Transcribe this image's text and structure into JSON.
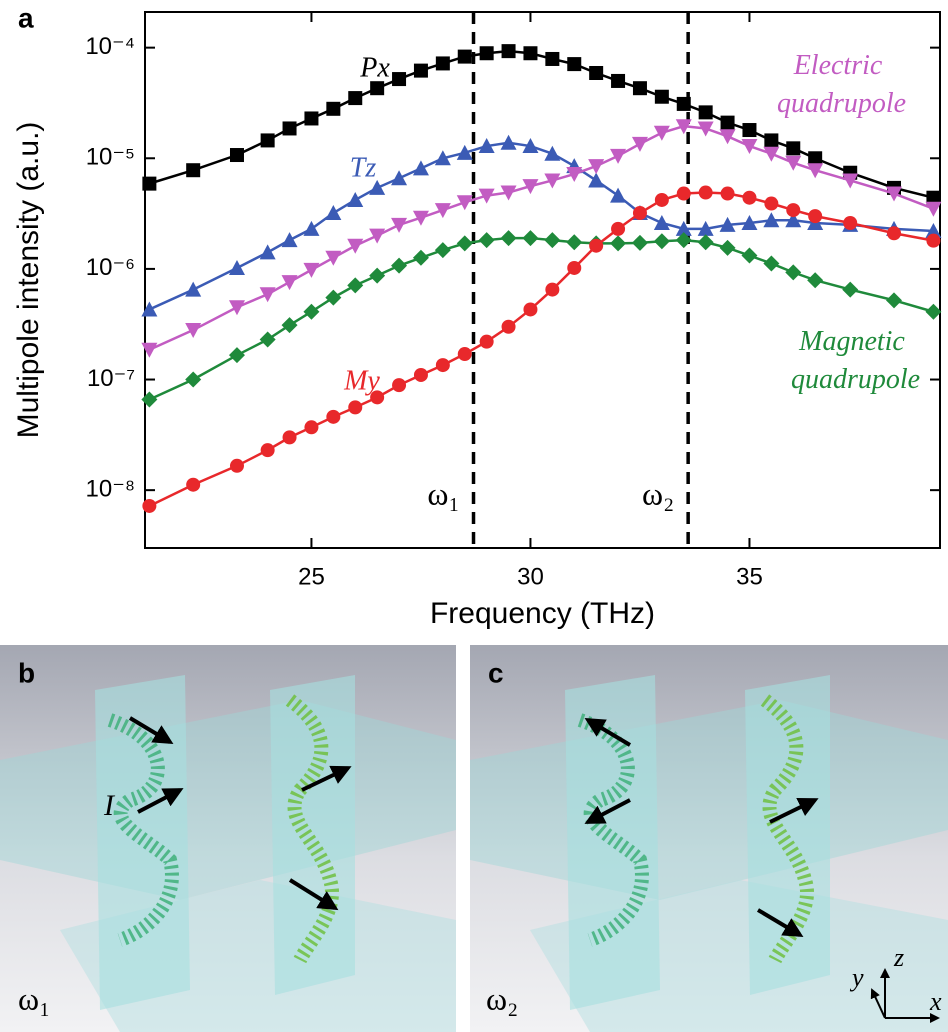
{
  "panel_label": "a",
  "chart_data": {
    "type": "line",
    "x_label": "Frequency (THz)",
    "y_label": "Multipole intensity (a.u.)",
    "x": [
      21.3,
      22.3,
      23.3,
      24.0,
      24.5,
      25.0,
      25.5,
      26.0,
      26.5,
      27.0,
      27.5,
      28.0,
      28.5,
      29.0,
      29.5,
      30.0,
      30.5,
      31.0,
      31.5,
      32.0,
      32.5,
      33.0,
      33.5,
      34.0,
      34.5,
      35.0,
      35.5,
      36.0,
      36.5,
      37.3,
      38.3,
      39.2
    ],
    "xlim": [
      21.2,
      39.35
    ],
    "xticks": [
      25,
      30,
      35
    ],
    "ylim": [
      3e-09,
      0.00021
    ],
    "log_y": true,
    "yticks": [
      {
        "value": 1e-08,
        "label": "10⁻⁸"
      },
      {
        "value": 1e-07,
        "label": "10⁻⁷"
      },
      {
        "value": 1e-06,
        "label": "10⁻⁶"
      },
      {
        "value": 1e-05,
        "label": "10⁻⁵"
      },
      {
        "value": 0.0001,
        "label": "10⁻⁴"
      }
    ],
    "series": [
      {
        "name": "Px",
        "color": "#000000",
        "marker": "square",
        "values": [
          5.9e-06,
          7.8e-06,
          1.07e-05,
          1.45e-05,
          1.86e-05,
          2.29e-05,
          2.8e-05,
          3.5e-05,
          4.3e-05,
          5.2e-05,
          6.2e-05,
          7.2e-05,
          8.3e-05,
          8.9e-05,
          9.3e-05,
          8.9e-05,
          7.9e-05,
          7.1e-05,
          5.9e-05,
          5e-05,
          4.3e-05,
          3.6e-05,
          3.1e-05,
          2.6e-05,
          2.1e-05,
          1.8e-05,
          1.45e-05,
          1.23e-05,
          1e-05,
          7.4e-06,
          5.4e-06,
          4.4e-06
        ]
      },
      {
        "name": "Tz",
        "color": "#3b5bb5",
        "marker": "triangle-up",
        "values": [
          4.3e-07,
          6.5e-07,
          1.02e-06,
          1.41e-06,
          1.82e-06,
          2.3e-06,
          3.2e-06,
          4.2e-06,
          5.4e-06,
          6.6e-06,
          8.1e-06,
          1e-05,
          1.12e-05,
          1.29e-05,
          1.38e-05,
          1.29e-05,
          1.1e-05,
          8.5e-06,
          6.3e-06,
          4.6e-06,
          3.2e-06,
          2.6e-06,
          2.3e-06,
          2.3e-06,
          2.5e-06,
          2.6e-06,
          2.75e-06,
          2.75e-06,
          2.6e-06,
          2.5e-06,
          2.3e-06,
          2.2e-06
        ]
      },
      {
        "name": "Electric quadrupole",
        "color": "#c25cc2",
        "marker": "triangle-down",
        "values": [
          1.86e-07,
          2.8e-07,
          4.5e-07,
          5.9e-07,
          7.6e-07,
          9.8e-07,
          1.26e-06,
          1.62e-06,
          2e-06,
          2.5e-06,
          2.9e-06,
          3.4e-06,
          4e-06,
          4.6e-06,
          4.9e-06,
          5.6e-06,
          6.3e-06,
          7.2e-06,
          8.5e-06,
          1.05e-05,
          1.35e-05,
          1.7e-05,
          1.95e-05,
          1.86e-05,
          1.58e-05,
          1.29e-05,
          1.1e-05,
          9.1e-06,
          7.8e-06,
          6.3e-06,
          4.8e-06,
          3.5e-06
        ]
      },
      {
        "name": "Magnetic quadrupole",
        "color": "#1f8a3b",
        "marker": "diamond",
        "values": [
          6.6e-08,
          1e-07,
          1.66e-07,
          2.3e-07,
          3.1e-07,
          4.1e-07,
          5.5e-07,
          7.1e-07,
          8.7e-07,
          1.07e-06,
          1.26e-06,
          1.48e-06,
          1.7e-06,
          1.82e-06,
          1.9e-06,
          1.9e-06,
          1.82e-06,
          1.74e-06,
          1.7e-06,
          1.7e-06,
          1.72e-06,
          1.78e-06,
          1.82e-06,
          1.74e-06,
          1.55e-06,
          1.32e-06,
          1.12e-06,
          9.3e-07,
          7.9e-07,
          6.5e-07,
          5.2e-07,
          4.1e-07
        ]
      },
      {
        "name": "My",
        "color": "#e8282b",
        "marker": "circle",
        "values": [
          7.2e-09,
          1.12e-08,
          1.66e-08,
          2.3e-08,
          3e-08,
          3.7e-08,
          4.6e-08,
          5.6e-08,
          6.9e-08,
          8.9e-08,
          1.1e-07,
          1.35e-07,
          1.7e-07,
          2.2e-07,
          3e-07,
          4.3e-07,
          6.5e-07,
          1.02e-06,
          1.62e-06,
          2.3e-06,
          3.2e-06,
          4.2e-06,
          4.8e-06,
          4.9e-06,
          4.8e-06,
          4.4e-06,
          3.9e-06,
          3.4e-06,
          3e-06,
          2.6e-06,
          2.1e-06,
          1.8e-06
        ]
      }
    ],
    "vlines": [
      {
        "x": 28.7,
        "label": "ω₁"
      },
      {
        "x": 33.6,
        "label": "ω₂"
      }
    ]
  },
  "panels": [
    {
      "label": "b",
      "frequency": "ω₁",
      "annotation": "I"
    },
    {
      "label": "c",
      "frequency": "ω₂",
      "axes": [
        "y",
        "z",
        "x"
      ]
    }
  ]
}
